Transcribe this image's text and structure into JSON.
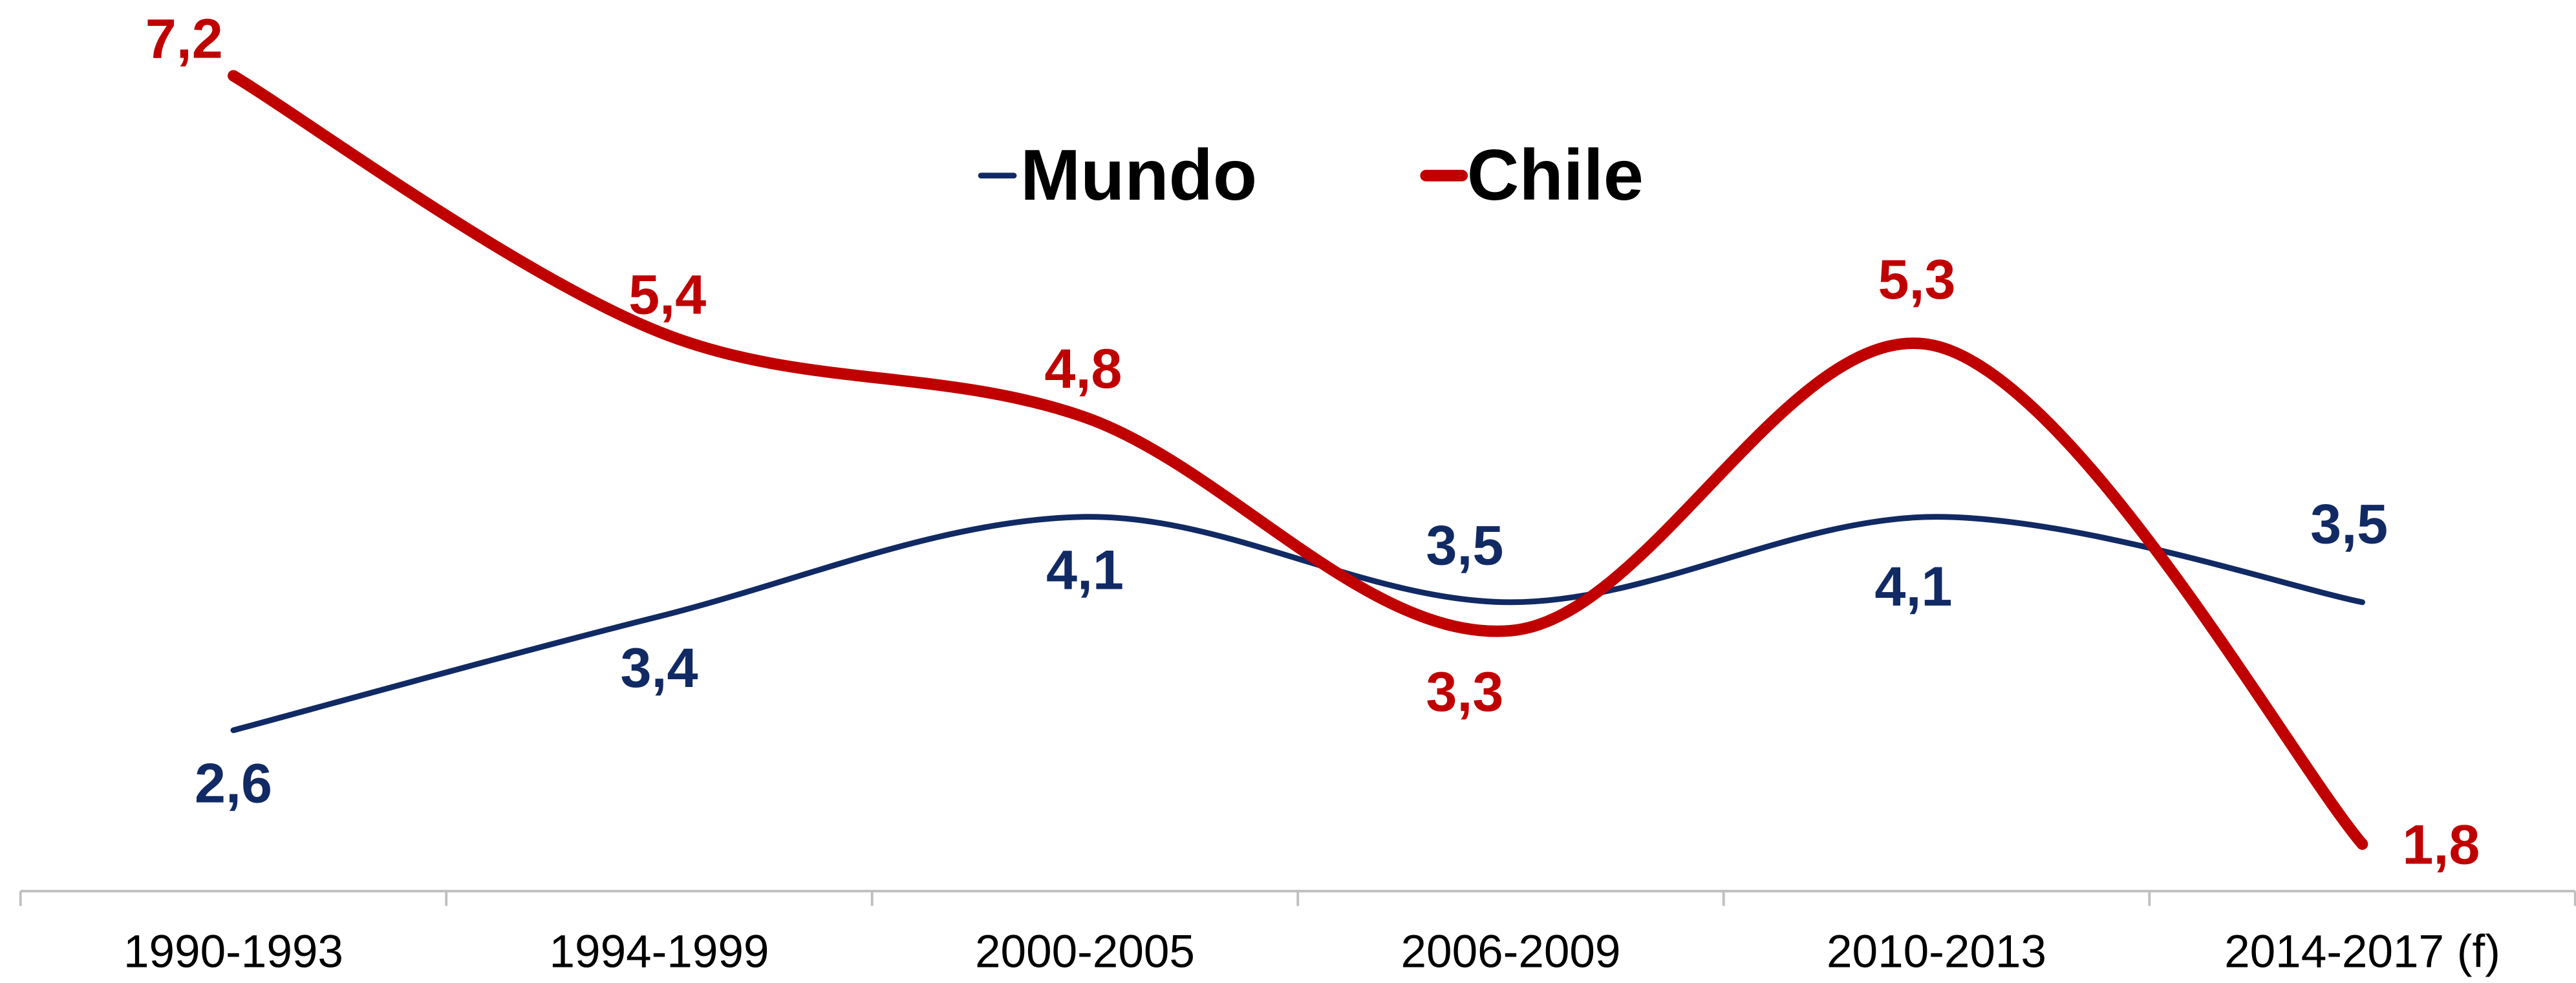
{
  "chart_data": {
    "type": "line",
    "categories": [
      "1990-1993",
      "1994-1999",
      "2000-2005",
      "2006-2009",
      "2010-2013",
      "2014-2017 (f)"
    ],
    "series": [
      {
        "name": "Mundo",
        "color": "#112a64",
        "values": [
          2.6,
          3.4,
          4.1,
          3.5,
          4.1,
          3.5
        ],
        "value_labels": [
          "2,6",
          "3,4",
          "4,1",
          "3,5",
          "4,1",
          "3,5"
        ]
      },
      {
        "name": "Chile",
        "color": "#c00000",
        "values": [
          7.2,
          5.4,
          4.8,
          3.3,
          5.3,
          1.8
        ],
        "value_labels": [
          "7,2",
          "5,4",
          "4,8",
          "3,3",
          "5,3",
          "1,8"
        ]
      }
    ],
    "legend": "top"
  }
}
